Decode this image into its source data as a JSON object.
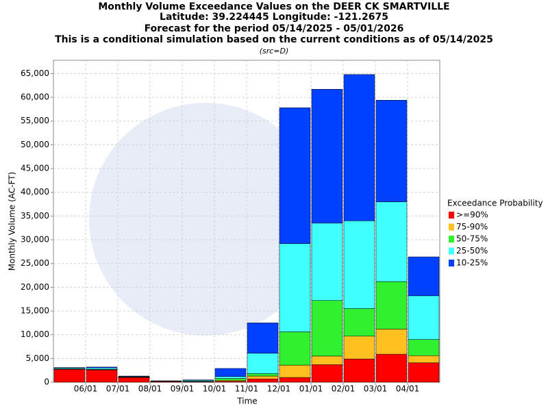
{
  "chart_data": {
    "type": "stacked_bar",
    "title_lines": [
      "Monthly Volume Exceedance Values on the DEER CK SMARTVILLE",
      "Latitude: 39.224445 Longitude: -121.2675",
      "Forecast for the period 05/14/2025 - 05/01/2026",
      "This is a conditional simulation based on the current conditions as of 05/14/2025"
    ],
    "source": "(src=D)",
    "x_label": "Time",
    "y_label": "Monthly Volume (AC-FT)",
    "legend_title": "Exceedance Probability",
    "categories": [
      null,
      "06/01",
      "07/01",
      "08/01",
      "09/01",
      "10/01",
      "11/01",
      "12/01",
      "01/01",
      "02/01",
      "03/01",
      "04/01"
    ],
    "series": [
      {
        "name": ">=90%",
        "color": "#ff0000",
        "values": [
          2700,
          2600,
          1000,
          150,
          100,
          200,
          700,
          1000,
          3700,
          4900,
          5900,
          4100
        ]
      },
      {
        "name": "75-90%",
        "color": "#ffc020",
        "values": [
          50,
          50,
          50,
          30,
          50,
          200,
          600,
          2600,
          1800,
          4800,
          5300,
          1500
        ]
      },
      {
        "name": "50-75%",
        "color": "#30f030",
        "values": [
          50,
          50,
          50,
          30,
          50,
          400,
          500,
          7000,
          11700,
          5800,
          10000,
          3400
        ]
      },
      {
        "name": "25-50%",
        "color": "#40ffff",
        "values": [
          200,
          300,
          100,
          50,
          200,
          400,
          4300,
          18600,
          16300,
          18500,
          16800,
          9200
        ]
      },
      {
        "name": "10-25%",
        "color": "#0040ff",
        "values": [
          100,
          200,
          100,
          40,
          100,
          1700,
          6400,
          28600,
          28200,
          30800,
          21400,
          8200
        ]
      }
    ],
    "ylim": [
      0,
      67800
    ],
    "yticks": [
      0,
      {
        "value": 5000,
        "label": "5,000"
      },
      {
        "value": 10000,
        "label": "10,000"
      },
      {
        "value": 15000,
        "label": "15,000"
      },
      {
        "value": 20000,
        "label": "20,000"
      },
      {
        "value": 25000,
        "label": "25,000"
      },
      {
        "value": 30000,
        "label": "30,000"
      },
      {
        "value": 35000,
        "label": "35,000"
      },
      {
        "value": 40000,
        "label": "40,000"
      },
      {
        "value": 45000,
        "label": "45,000"
      },
      {
        "value": 50000,
        "label": "50,000"
      },
      {
        "value": 55000,
        "label": "55,000"
      },
      {
        "value": 60000,
        "label": "60,000"
      },
      {
        "value": 65000,
        "label": "65,000"
      }
    ],
    "grid": true
  }
}
